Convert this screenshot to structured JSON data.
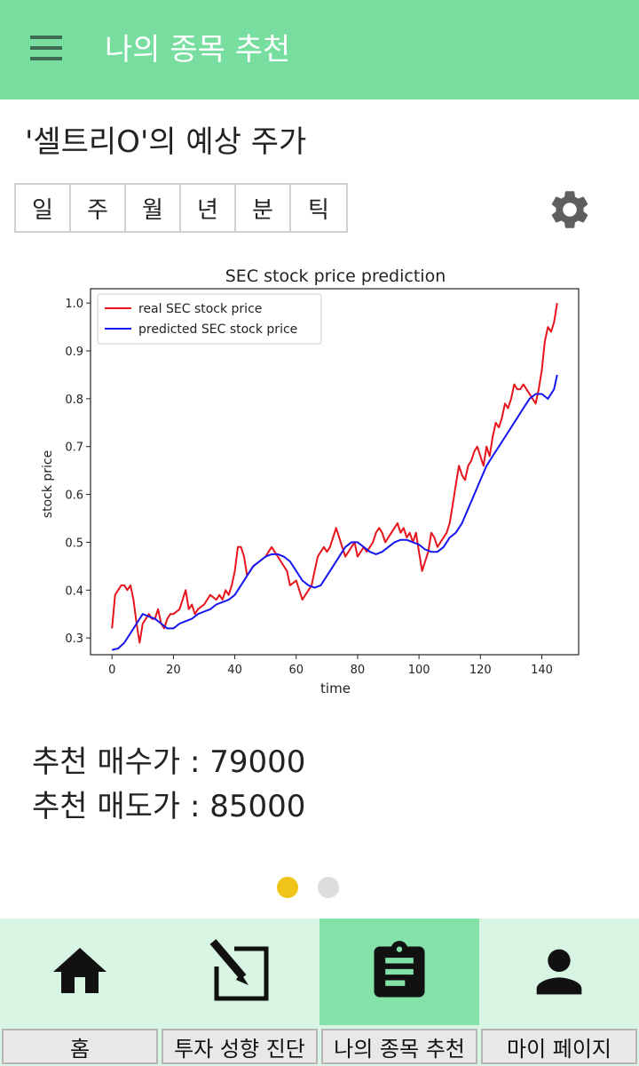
{
  "appbar": {
    "title": "나의 종목 추천"
  },
  "page": {
    "title": "'셀트리O'의 예상 주가"
  },
  "period_tabs": [
    "일",
    "주",
    "월",
    "년",
    "분",
    "틱"
  ],
  "chart_data": {
    "type": "line",
    "title": "SEC stock price prediction",
    "xlabel": "time",
    "ylabel": "stock price",
    "xlim": [
      -7,
      152
    ],
    "ylim": [
      0.265,
      1.03
    ],
    "xticks": [
      0,
      20,
      40,
      60,
      80,
      100,
      120,
      140
    ],
    "yticks": [
      0.3,
      0.4,
      0.5,
      0.6,
      0.7,
      0.8,
      0.9,
      1.0
    ],
    "legend_position": "upper-left",
    "grid": false,
    "series": [
      {
        "name": "real SEC stock price",
        "color": "#e8141c",
        "x": [
          0,
          1,
          2,
          3,
          4,
          5,
          6,
          7,
          8,
          9,
          10,
          11,
          12,
          13,
          14,
          15,
          16,
          17,
          18,
          19,
          20,
          22,
          24,
          25,
          26,
          27,
          28,
          30,
          32,
          34,
          35,
          36,
          37,
          38,
          39,
          40,
          41,
          42,
          43,
          44,
          45,
          46,
          48,
          50,
          51,
          52,
          53,
          54,
          55,
          56,
          57,
          58,
          60,
          61,
          62,
          63,
          64,
          65,
          66,
          67,
          68,
          69,
          70,
          71,
          72,
          73,
          74,
          75,
          76,
          77,
          78,
          79,
          80,
          81,
          82,
          83,
          84,
          85,
          86,
          87,
          88,
          89,
          90,
          91,
          92,
          93,
          94,
          95,
          96,
          97,
          98,
          99,
          100,
          101,
          102,
          103,
          104,
          105,
          106,
          107,
          108,
          109,
          110,
          111,
          112,
          113,
          114,
          115,
          116,
          117,
          118,
          119,
          120,
          121,
          122,
          123,
          124,
          125,
          126,
          127,
          128,
          129,
          130,
          131,
          132,
          133,
          134,
          135,
          136,
          137,
          138,
          139,
          140,
          141,
          142,
          143,
          144,
          145
        ],
        "values": [
          0.32,
          0.39,
          0.4,
          0.41,
          0.41,
          0.4,
          0.41,
          0.38,
          0.33,
          0.29,
          0.33,
          0.34,
          0.35,
          0.34,
          0.34,
          0.36,
          0.33,
          0.32,
          0.34,
          0.35,
          0.35,
          0.36,
          0.4,
          0.36,
          0.37,
          0.35,
          0.36,
          0.37,
          0.39,
          0.38,
          0.39,
          0.38,
          0.4,
          0.39,
          0.41,
          0.44,
          0.49,
          0.49,
          0.47,
          0.43,
          0.44,
          0.45,
          0.46,
          0.47,
          0.48,
          0.49,
          0.48,
          0.47,
          0.46,
          0.45,
          0.44,
          0.41,
          0.42,
          0.4,
          0.38,
          0.39,
          0.4,
          0.41,
          0.44,
          0.47,
          0.48,
          0.49,
          0.48,
          0.49,
          0.51,
          0.53,
          0.51,
          0.49,
          0.47,
          0.48,
          0.49,
          0.5,
          0.47,
          0.48,
          0.49,
          0.48,
          0.49,
          0.5,
          0.52,
          0.53,
          0.52,
          0.5,
          0.51,
          0.52,
          0.53,
          0.54,
          0.52,
          0.53,
          0.51,
          0.52,
          0.5,
          0.52,
          0.48,
          0.44,
          0.46,
          0.48,
          0.52,
          0.51,
          0.49,
          0.5,
          0.51,
          0.52,
          0.54,
          0.58,
          0.62,
          0.66,
          0.64,
          0.63,
          0.66,
          0.67,
          0.69,
          0.7,
          0.68,
          0.66,
          0.7,
          0.68,
          0.72,
          0.75,
          0.74,
          0.76,
          0.79,
          0.78,
          0.8,
          0.83,
          0.82,
          0.82,
          0.83,
          0.82,
          0.81,
          0.8,
          0.79,
          0.82,
          0.86,
          0.92,
          0.95,
          0.94,
          0.96,
          1.0
        ]
      },
      {
        "name": "predicted SEC stock price",
        "color": "#1515f0",
        "x": [
          0,
          2,
          4,
          6,
          8,
          10,
          12,
          14,
          16,
          18,
          20,
          22,
          24,
          26,
          28,
          30,
          32,
          34,
          36,
          38,
          40,
          42,
          44,
          46,
          48,
          50,
          52,
          54,
          56,
          58,
          60,
          62,
          64,
          66,
          68,
          70,
          72,
          74,
          76,
          78,
          80,
          82,
          84,
          86,
          88,
          90,
          92,
          94,
          96,
          98,
          100,
          102,
          104,
          106,
          108,
          110,
          112,
          114,
          116,
          118,
          120,
          122,
          124,
          126,
          128,
          130,
          132,
          134,
          136,
          138,
          140,
          142,
          144,
          145
        ],
        "values": [
          0.275,
          0.278,
          0.29,
          0.31,
          0.33,
          0.35,
          0.345,
          0.34,
          0.33,
          0.32,
          0.32,
          0.33,
          0.335,
          0.34,
          0.35,
          0.355,
          0.36,
          0.37,
          0.375,
          0.38,
          0.39,
          0.41,
          0.43,
          0.45,
          0.46,
          0.47,
          0.475,
          0.475,
          0.47,
          0.46,
          0.44,
          0.42,
          0.41,
          0.405,
          0.41,
          0.43,
          0.45,
          0.47,
          0.49,
          0.5,
          0.5,
          0.49,
          0.48,
          0.475,
          0.48,
          0.49,
          0.5,
          0.505,
          0.505,
          0.5,
          0.495,
          0.485,
          0.48,
          0.48,
          0.49,
          0.51,
          0.52,
          0.54,
          0.57,
          0.6,
          0.63,
          0.66,
          0.68,
          0.7,
          0.72,
          0.74,
          0.76,
          0.78,
          0.8,
          0.81,
          0.81,
          0.8,
          0.82,
          0.85
        ]
      }
    ]
  },
  "prices": {
    "buy_label": "추천 매수가 : 79000",
    "sell_label": "추천 매도가 : 85000"
  },
  "pager": {
    "active_color": "#f0c419",
    "inactive_color": "#dddddd"
  },
  "bottom_nav": [
    {
      "label": "홈",
      "icon": "home-icon"
    },
    {
      "label": "투자 성향 진단",
      "icon": "edit-icon"
    },
    {
      "label": "나의 종목 추천",
      "icon": "clipboard-icon",
      "active": true
    },
    {
      "label": "마이 페이지",
      "icon": "person-icon"
    }
  ]
}
